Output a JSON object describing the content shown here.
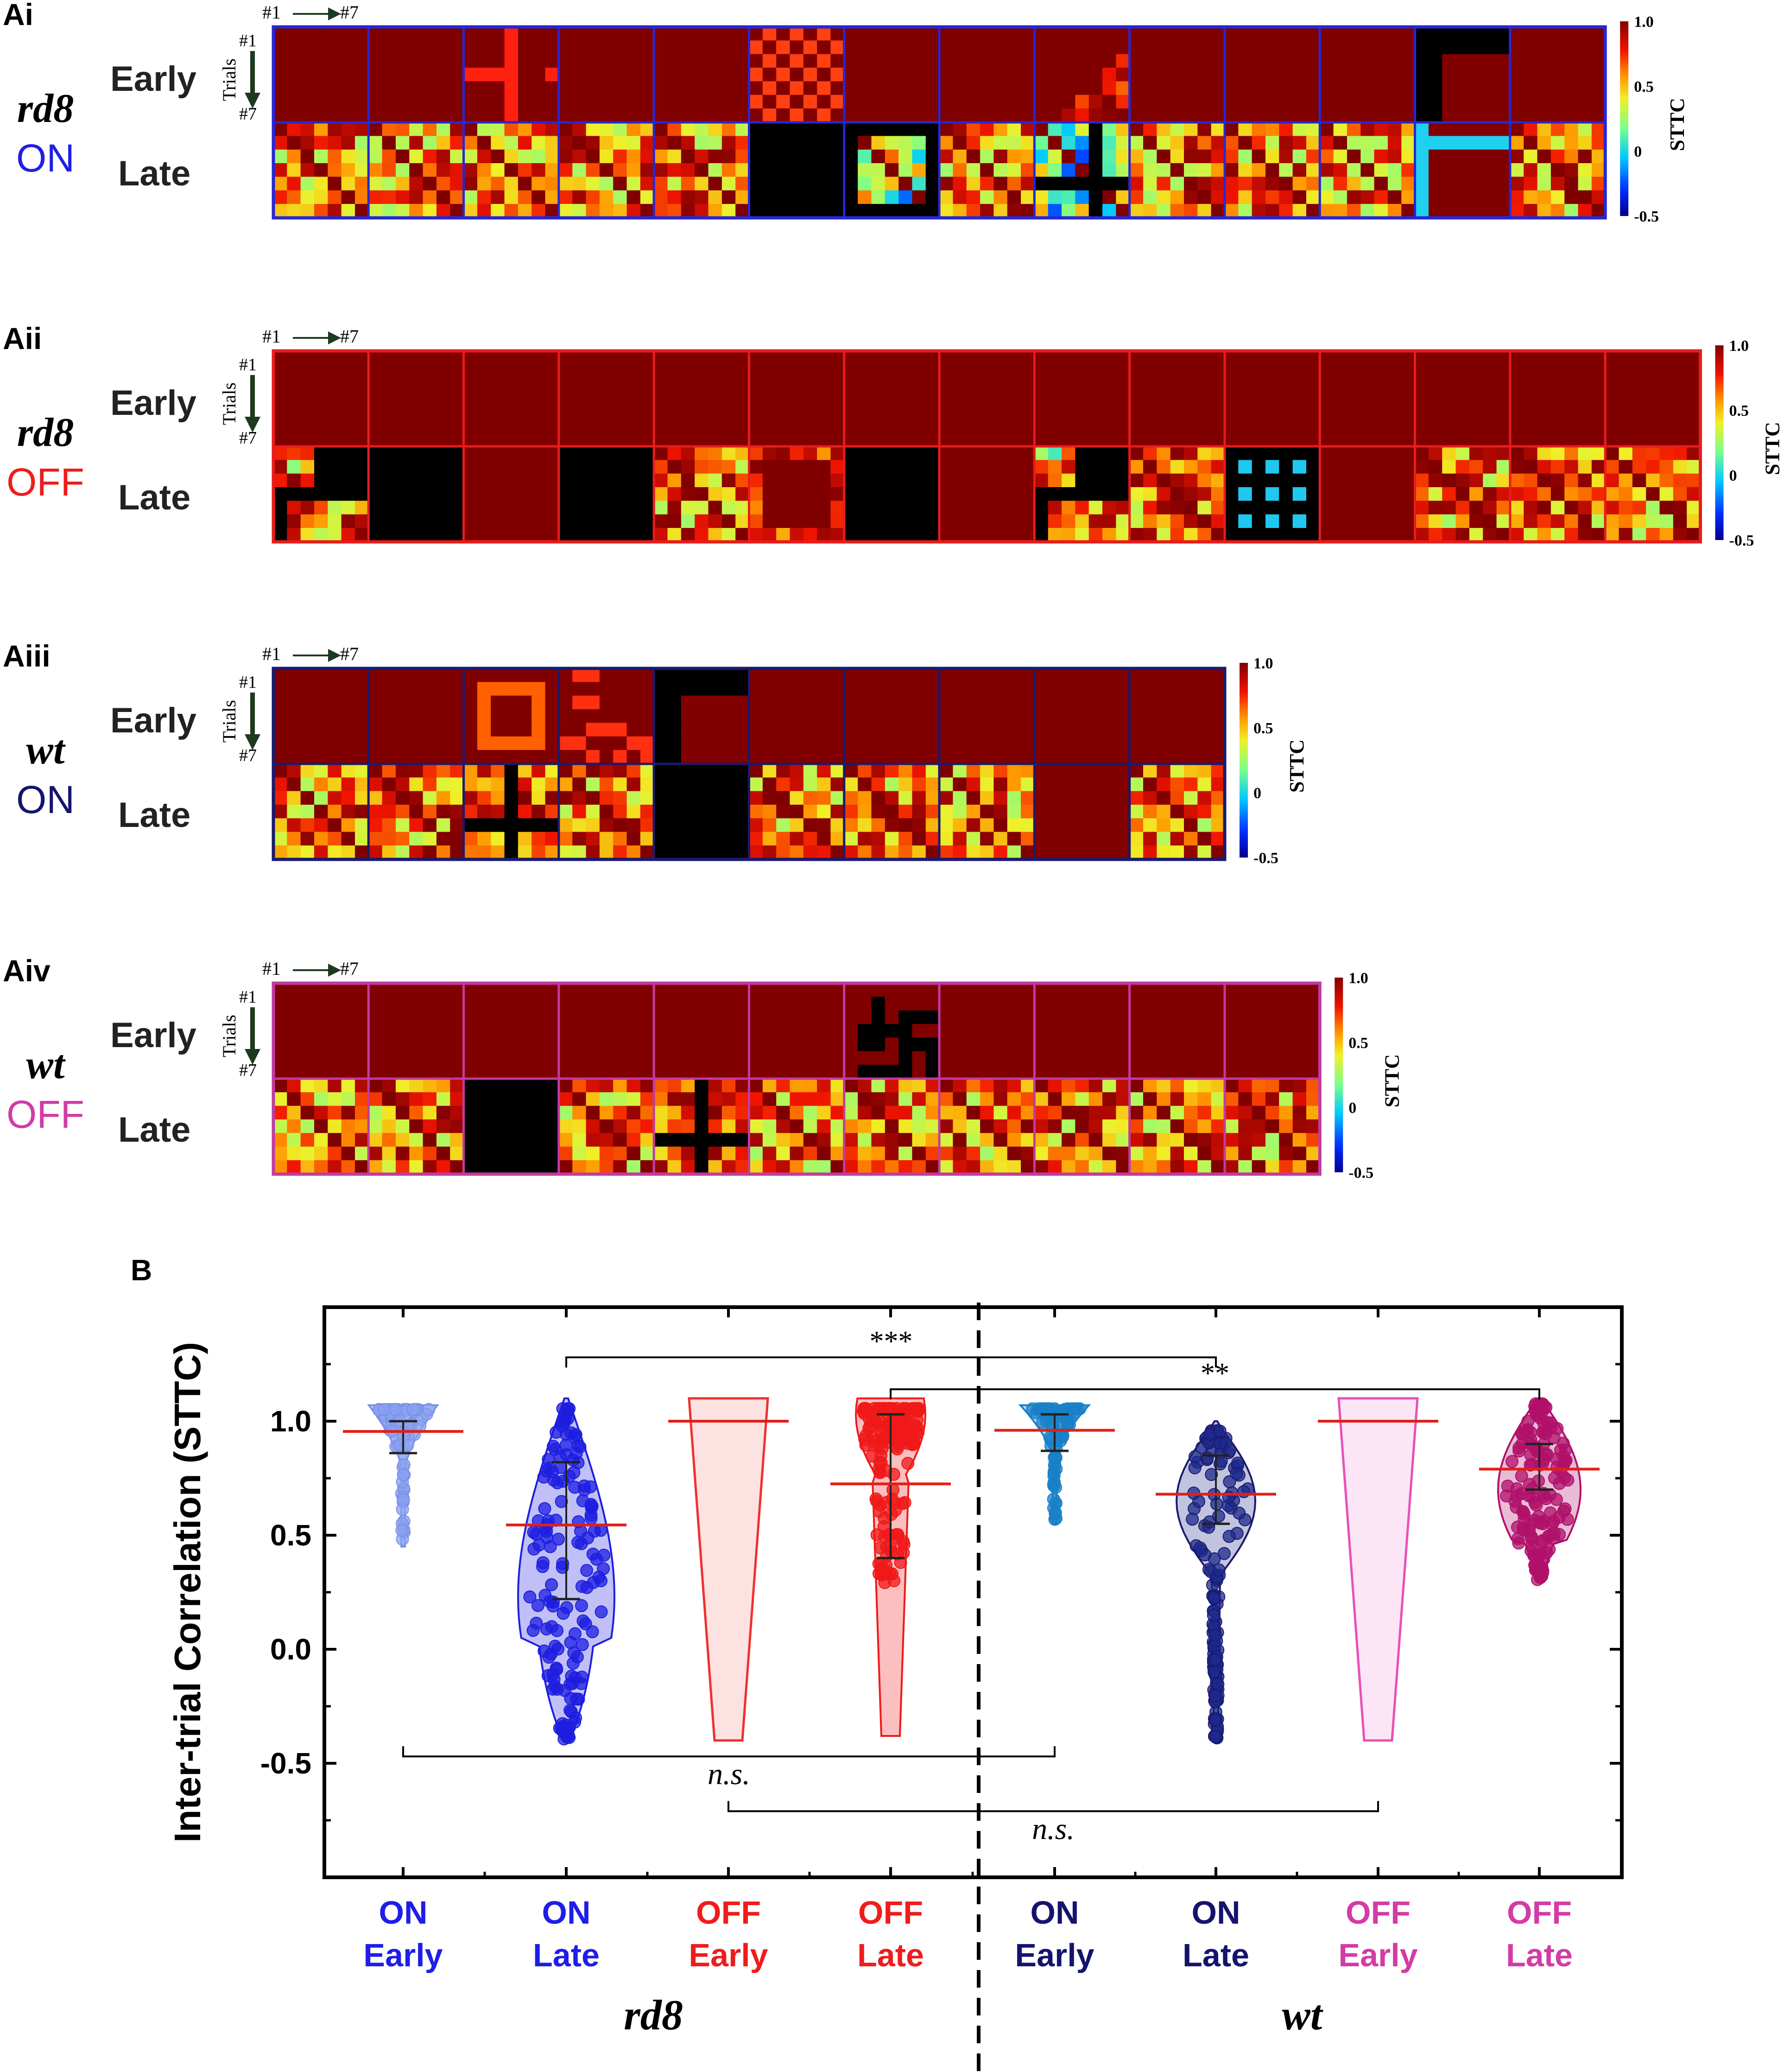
{
  "colors": {
    "rd8_on": "#1e1ee8",
    "rd8_off": "#f01c1c",
    "wt_on": "#14146e",
    "wt_off": "#d23ca5",
    "dark_red": "#800000",
    "median_line": "#e0201a"
  },
  "panels": [
    {
      "id": "Ai",
      "label": "Ai",
      "genotype": "rd8",
      "polarity": "ON",
      "early_label": "Early",
      "late_label": "Late",
      "n": 14,
      "border": "#2727d4",
      "polarity_color": "#1e1ee8",
      "early_special": {
        "2": "diag",
        "5": "checker",
        "8": "stair",
        "12": "blackL"
      },
      "late_special": {
        "5": "black",
        "6": "cyanFrame",
        "8": "cyanCross",
        "12": "cyanL"
      }
    },
    {
      "id": "Aii",
      "label": "Aii",
      "genotype": "rd8",
      "polarity": "OFF",
      "early_label": "Early",
      "late_label": "Late",
      "n": 15,
      "border": "#e81c1c",
      "polarity_color": "#f01c1c",
      "early_special": {},
      "late_special": {
        "0": "blackCorner",
        "1": "black",
        "2": "plain",
        "3": "black",
        "5": "frameYellow",
        "6": "black",
        "7": "plain",
        "8": "blackCorner",
        "10": "blackDots",
        "11": "plain"
      }
    },
    {
      "id": "Aiii",
      "label": "Aiii",
      "genotype": "wt",
      "polarity": "ON",
      "early_label": "Early",
      "late_label": "Late",
      "n": 10,
      "border": "#1a1a6e",
      "polarity_color": "#14146e",
      "early_special": {
        "2": "ring",
        "3": "speck",
        "4": "blackL"
      },
      "late_special": {
        "2": "blackCross",
        "4": "black",
        "8": "plain"
      }
    },
    {
      "id": "Aiv",
      "label": "Aiv",
      "genotype": "wt",
      "polarity": "OFF",
      "early_label": "Early",
      "late_label": "Late",
      "n": 11,
      "border": "#c03ca0",
      "polarity_color": "#d23ca5",
      "early_special": {
        "6": "blackBlob"
      },
      "late_special": {
        "2": "black",
        "4": "blackCross"
      }
    }
  ],
  "heatmap_common": {
    "trial_start": "#1",
    "trial_end": "#7",
    "trials_label": "Trials",
    "colorbar_ticks": [
      "1.0",
      "0.5",
      "0",
      "-0.5"
    ],
    "colorbar_label": "STTC"
  },
  "panel_b": {
    "label": "B",
    "chart_data": {
      "type": "violin",
      "ylabel": "Inter-trial Correlation (STTC)",
      "ylim": [
        -1.0,
        1.5
      ],
      "yticks": [
        1.0,
        0.5,
        0.0,
        -0.5
      ],
      "ytick_labels": [
        "1.0",
        "0.5",
        "0.0",
        "-0.5"
      ],
      "groups": [
        {
          "line1": "ON",
          "line2": "Early",
          "genotype": "rd8",
          "color": "#8aa0f0",
          "edge": "#7a90e8",
          "median": 0.955,
          "q1": 0.86,
          "q3": 1.0,
          "max": 1.07,
          "min": 0.45,
          "shape": "topHeavy"
        },
        {
          "line1": "ON",
          "line2": "Late",
          "genotype": "rd8",
          "color": "#1e1ee0",
          "edge": "#1e1ee0",
          "median": 0.545,
          "q1": 0.22,
          "q3": 0.82,
          "max": 1.1,
          "min": -0.4,
          "shape": "broad"
        },
        {
          "line1": "OFF",
          "line2": "Early",
          "genotype": "rd8",
          "color": "#f03030",
          "edge": "#f03030",
          "median": 1.0,
          "q1": 1.0,
          "q3": 1.0,
          "max": 1.1,
          "min": -0.4,
          "shape": "wedge"
        },
        {
          "line1": "OFF",
          "line2": "Late",
          "genotype": "rd8",
          "color": "#f01818",
          "edge": "#f01818",
          "median": 0.725,
          "q1": 0.4,
          "q3": 1.03,
          "max": 1.1,
          "min": -0.38,
          "shape": "topBulb"
        },
        {
          "line1": "ON",
          "line2": "Early",
          "genotype": "wt",
          "color": "#1a80c8",
          "edge": "#1a80c8",
          "median": 0.96,
          "q1": 0.87,
          "q3": 1.03,
          "max": 1.07,
          "min": 0.55,
          "shape": "topHeavy"
        },
        {
          "line1": "ON",
          "line2": "Late",
          "genotype": "wt",
          "color": "#1e2a8c",
          "edge": "#1a1a6e",
          "median": 0.68,
          "q1": 0.55,
          "q3": 0.85,
          "max": 1.0,
          "min": -0.4,
          "shape": "mid"
        },
        {
          "line1": "OFF",
          "line2": "Early",
          "genotype": "wt",
          "color": "#e850b8",
          "edge": "#e850b8",
          "median": 1.0,
          "q1": 1.0,
          "q3": 1.0,
          "max": 1.1,
          "min": -0.4,
          "shape": "wedge"
        },
        {
          "line1": "OFF",
          "line2": "Late",
          "genotype": "wt",
          "color": "#b0106a",
          "edge": "#b0106a",
          "median": 0.79,
          "q1": 0.7,
          "q3": 0.9,
          "max": 1.1,
          "min": 0.3,
          "shape": "upper"
        }
      ],
      "significance": [
        {
          "from": 1,
          "to": 5,
          "y": 1.28,
          "label": "***"
        },
        {
          "from": 3,
          "to": 7,
          "y": 1.14,
          "label": "**"
        },
        {
          "from": 0,
          "to": 4,
          "y": -0.47,
          "label": "n.s."
        },
        {
          "from": 2,
          "to": 6,
          "y": -0.71,
          "label": "n.s."
        }
      ],
      "group_labels": [
        "rd8",
        "wt"
      ],
      "label_colors": [
        "#1e1ee8",
        "#1e1ee8",
        "#f01c1c",
        "#f01c1c",
        "#14146e",
        "#14146e",
        "#d23ca5",
        "#d23ca5"
      ]
    }
  }
}
